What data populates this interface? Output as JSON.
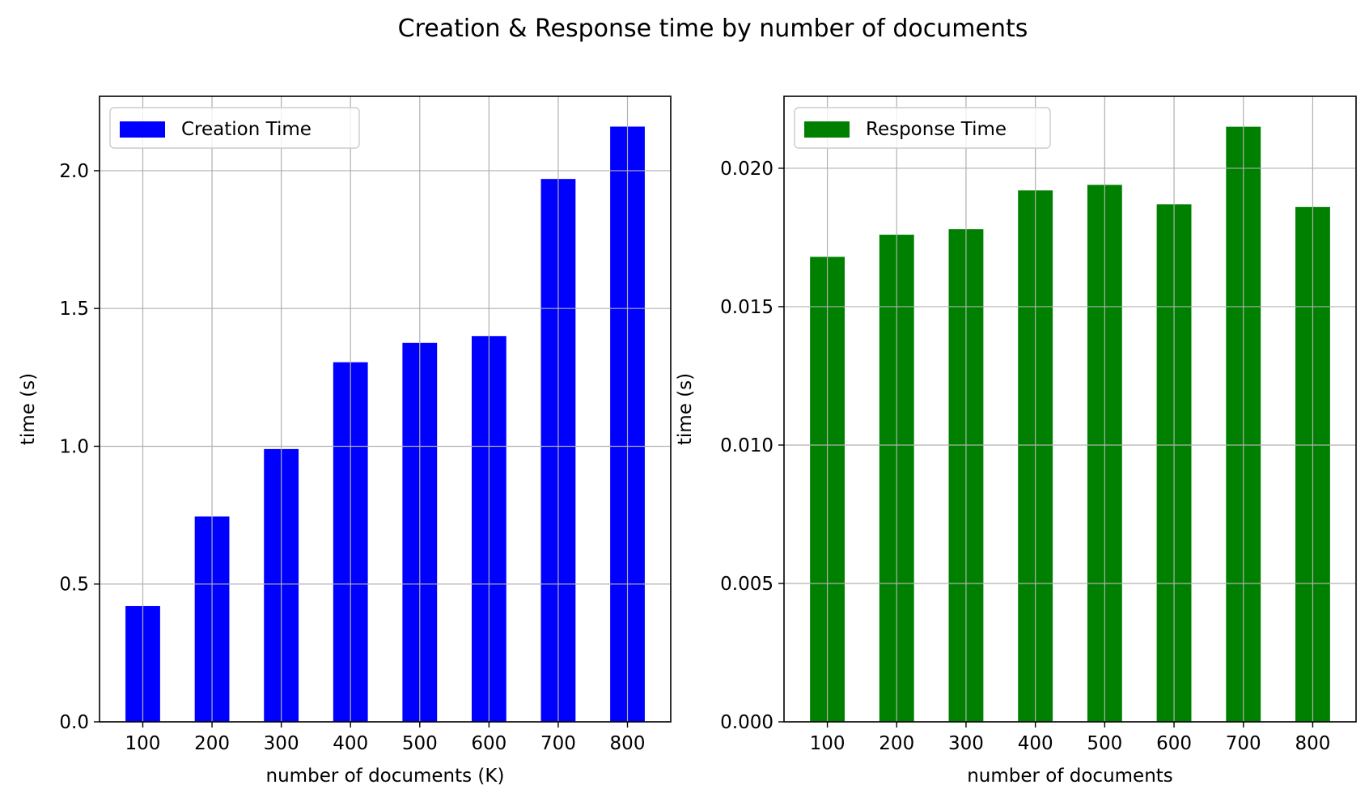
{
  "figure": {
    "title": "Creation & Response time by number of documents"
  },
  "chart_data": [
    {
      "type": "bar",
      "categories": [
        "100",
        "200",
        "300",
        "400",
        "500",
        "600",
        "700",
        "800"
      ],
      "series": [
        {
          "name": "Creation Time",
          "color": "#0000ff",
          "values": [
            0.42,
            0.745,
            0.99,
            1.305,
            1.375,
            1.4,
            1.97,
            2.16
          ]
        }
      ],
      "xlabel": "number of documents (K)",
      "ylabel": "time (s)",
      "ylim": [
        0,
        2.27
      ],
      "yticks": [
        0.0,
        0.5,
        1.0,
        1.5,
        2.0
      ],
      "ytick_labels": [
        "0.0",
        "0.5",
        "1.0",
        "1.5",
        "2.0"
      ],
      "grid": true,
      "legend": "upper-left"
    },
    {
      "type": "bar",
      "categories": [
        "100",
        "200",
        "300",
        "400",
        "500",
        "600",
        "700",
        "800"
      ],
      "series": [
        {
          "name": "Response Time",
          "color": "#008000",
          "values": [
            0.0168,
            0.0176,
            0.0178,
            0.0192,
            0.0194,
            0.0187,
            0.0215,
            0.0186
          ]
        }
      ],
      "xlabel": "number of documents",
      "ylabel": "time (s)",
      "ylim": [
        0,
        0.0226
      ],
      "yticks": [
        0.0,
        0.005,
        0.01,
        0.015,
        0.02
      ],
      "ytick_labels": [
        "0.000",
        "0.005",
        "0.010",
        "0.015",
        "0.020"
      ],
      "grid": true,
      "legend": "upper-left"
    }
  ]
}
